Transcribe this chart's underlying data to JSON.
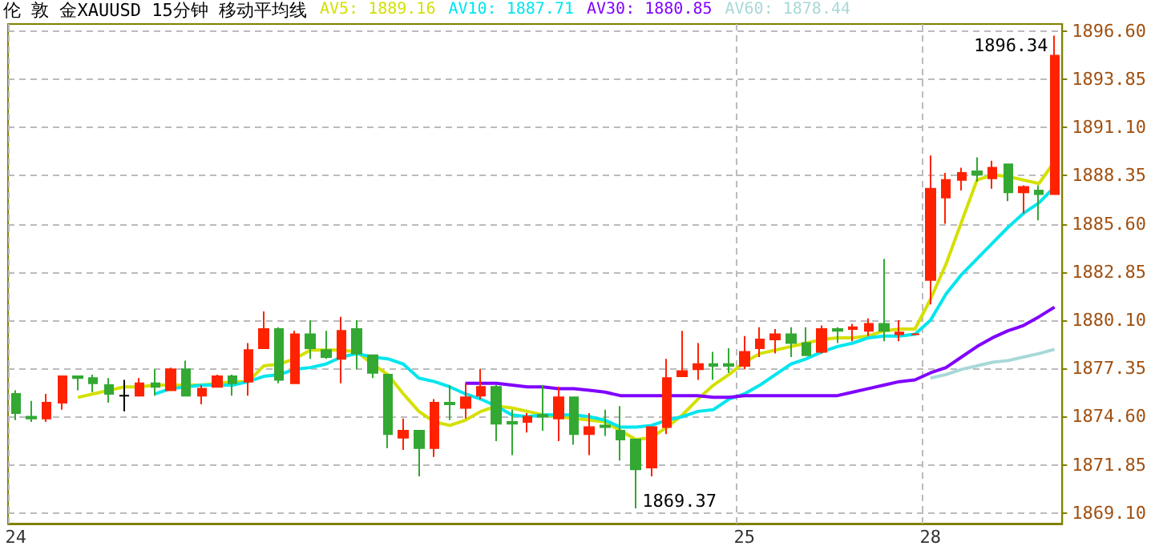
{
  "chart_data": {
    "type": "candlestick",
    "title": "伦 敦 金XAUUSD 15分钟 移动平均线",
    "categories": [
      "24",
      null,
      null,
      null,
      null,
      null,
      null,
      null,
      null,
      null,
      null,
      null,
      null,
      null,
      null,
      null,
      null,
      null,
      null,
      null,
      null,
      null,
      null,
      null,
      null,
      null,
      null,
      null,
      null,
      null,
      null,
      null,
      null,
      null,
      null,
      null,
      null,
      null,
      null,
      null,
      null,
      null,
      null,
      null,
      null,
      null,
      null,
      "25",
      null,
      null,
      null,
      null,
      null,
      null,
      null,
      null,
      null,
      null,
      null,
      "28",
      null,
      null,
      null,
      null,
      null,
      null,
      null,
      null
    ],
    "ohlc": [
      [
        1875.9,
        1876.1,
        1874.4,
        1874.8
      ],
      [
        1874.6,
        1875.5,
        1874.3,
        1874.5
      ],
      [
        1874.5,
        1875.9,
        1874.3,
        1875.4
      ],
      [
        1875.4,
        1876.9,
        1875.0,
        1876.9
      ],
      [
        1876.9,
        1876.9,
        1876.1,
        1876.8
      ],
      [
        1876.8,
        1877.0,
        1876.0,
        1876.5
      ],
      [
        1876.4,
        1876.8,
        1875.4,
        1875.9
      ],
      [
        1875.8,
        1876.7,
        1874.9,
        1875.8
      ],
      [
        1875.8,
        1876.8,
        1875.8,
        1876.5
      ],
      [
        1876.5,
        1877.3,
        1875.8,
        1876.3
      ],
      [
        1876.1,
        1877.4,
        1876.1,
        1877.3
      ],
      [
        1877.3,
        1877.8,
        1875.8,
        1875.8
      ],
      [
        1875.8,
        1876.4,
        1875.3,
        1876.2
      ],
      [
        1876.3,
        1877.0,
        1876.3,
        1876.9
      ],
      [
        1876.9,
        1877.0,
        1875.8,
        1876.5
      ],
      [
        1876.6,
        1878.8,
        1875.8,
        1878.4
      ],
      [
        1878.5,
        1880.6,
        1878.5,
        1879.6
      ],
      [
        1879.6,
        1879.7,
        1876.5,
        1876.7
      ],
      [
        1876.5,
        1879.5,
        1876.5,
        1879.3
      ],
      [
        1879.3,
        1880.1,
        1877.9,
        1878.5
      ],
      [
        1878.4,
        1879.5,
        1877.9,
        1878.0
      ],
      [
        1877.9,
        1880.3,
        1876.5,
        1879.5
      ],
      [
        1879.6,
        1880.1,
        1877.3,
        1878.2
      ],
      [
        1878.1,
        1878.1,
        1876.8,
        1877.1
      ],
      [
        1877.0,
        1877.0,
        1872.8,
        1873.6
      ],
      [
        1873.4,
        1874.5,
        1872.7,
        1873.8
      ],
      [
        1873.8,
        1873.8,
        1871.2,
        1872.8
      ],
      [
        1872.8,
        1875.6,
        1872.3,
        1875.4
      ],
      [
        1875.4,
        1876.4,
        1874.4,
        1875.3
      ],
      [
        1875.1,
        1876.5,
        1874.5,
        1875.7
      ],
      [
        1875.8,
        1877.3,
        1875.6,
        1876.3
      ],
      [
        1876.3,
        1876.4,
        1873.2,
        1874.2
      ],
      [
        1874.3,
        1875.0,
        1872.4,
        1874.2
      ],
      [
        1874.3,
        1874.8,
        1873.7,
        1874.6
      ],
      [
        1874.7,
        1876.4,
        1873.8,
        1874.6
      ],
      [
        1874.5,
        1876.3,
        1873.2,
        1875.7
      ],
      [
        1875.7,
        1875.7,
        1873.0,
        1873.6
      ],
      [
        1873.6,
        1874.8,
        1872.4,
        1874.0
      ],
      [
        1874.1,
        1875.0,
        1873.5,
        1874.0
      ],
      [
        1873.8,
        1875.2,
        1872.1,
        1873.3
      ],
      [
        1873.3,
        1873.3,
        1869.37,
        1871.6
      ],
      [
        1871.7,
        1874.0,
        1871.2,
        1874.0
      ],
      [
        1874.0,
        1877.9,
        1873.6,
        1876.8
      ],
      [
        1876.9,
        1879.5,
        1876.9,
        1877.2
      ],
      [
        1877.3,
        1878.8,
        1876.7,
        1877.6
      ],
      [
        1877.6,
        1878.3,
        1876.7,
        1877.5
      ],
      [
        1877.6,
        1878.5,
        1877.1,
        1877.5
      ],
      [
        1877.5,
        1879.2,
        1877.3,
        1878.3
      ],
      [
        1878.5,
        1879.7,
        1878.0,
        1879.0
      ],
      [
        1879.0,
        1879.6,
        1878.2,
        1879.3
      ],
      [
        1879.3,
        1879.7,
        1878.0,
        1878.8
      ],
      [
        1878.8,
        1879.7,
        1878.1,
        1878.1
      ],
      [
        1878.3,
        1879.8,
        1878.2,
        1879.6
      ],
      [
        1879.6,
        1879.7,
        1878.8,
        1879.5
      ],
      [
        1879.6,
        1879.9,
        1878.9,
        1879.7
      ],
      [
        1879.5,
        1880.2,
        1879.2,
        1879.9
      ],
      [
        1879.9,
        1883.6,
        1878.9,
        1879.5
      ],
      [
        1879.3,
        1880.1,
        1878.9,
        1879.4
      ],
      [
        1879.3,
        1879.3,
        1879.3,
        1879.3
      ],
      [
        1882.4,
        1889.5,
        1881.0,
        1887.6
      ],
      [
        1887.1,
        1888.5,
        1885.6,
        1888.1
      ],
      [
        1888.1,
        1888.8,
        1887.5,
        1888.5
      ],
      [
        1888.6,
        1889.4,
        1888.0,
        1888.4
      ],
      [
        1888.2,
        1889.2,
        1887.6,
        1888.8
      ],
      [
        1889.0,
        1889.0,
        1886.9,
        1887.4
      ],
      [
        1887.4,
        1887.8,
        1886.2,
        1887.7
      ],
      [
        1887.5,
        1887.8,
        1885.8,
        1887.3
      ],
      [
        1887.3,
        1896.34,
        1887.3,
        1895.2
      ]
    ],
    "colors": [
      "#33a833",
      "#33a833",
      "#ff2200",
      "#ff2200",
      "#33a833",
      "#33a833",
      "#33a833",
      "#000000",
      "#ff2200",
      "#33a833",
      "#ff2200",
      "#33a833",
      "#ff2200",
      "#ff2200",
      "#33a833",
      "#ff2200",
      "#ff2200",
      "#33a833",
      "#ff2200",
      "#33a833",
      "#33a833",
      "#ff2200",
      "#33a833",
      "#33a833",
      "#33a833",
      "#ff2200",
      "#33a833",
      "#ff2200",
      "#33a833",
      "#ff2200",
      "#ff2200",
      "#33a833",
      "#33a833",
      "#ff2200",
      "#33a833",
      "#ff2200",
      "#33a833",
      "#ff2200",
      "#33a833",
      "#33a833",
      "#33a833",
      "#ff2200",
      "#ff2200",
      "#ff2200",
      "#ff2200",
      "#33a833",
      "#33a833",
      "#ff2200",
      "#ff2200",
      "#ff2200",
      "#33a833",
      "#33a833",
      "#ff2200",
      "#33a833",
      "#ff2200",
      "#ff2200",
      "#33a833",
      "#ff2200",
      "#ff2200",
      "#ff2200",
      "#ff2200",
      "#ff2200",
      "#33a833",
      "#ff2200",
      "#33a833",
      "#ff2200",
      "#33a833",
      "#ff2200"
    ],
    "series": [
      {
        "type": "line",
        "name": "AV5: 1889.16",
        "color": "#d4e000",
        "values": [
          null,
          null,
          null,
          null,
          1875.7,
          1875.9,
          1876.1,
          1876.3,
          1876.3,
          1876.4,
          1876.4,
          1876.4,
          1876.4,
          1876.5,
          1876.6,
          1876.6,
          1877.5,
          1877.6,
          1877.9,
          1878.4,
          1878.4,
          1878.4,
          1878.3,
          1877.6,
          1877.0,
          1875.9,
          1874.9,
          1874.3,
          1874.1,
          1874.4,
          1874.9,
          1875.2,
          1875.1,
          1874.9,
          1874.7,
          1874.6,
          1874.5,
          1874.4,
          1874.3,
          1873.8,
          1873.3,
          1873.4,
          1874.0,
          1874.7,
          1875.6,
          1876.4,
          1877.0,
          1877.7,
          1878.2,
          1878.4,
          1878.6,
          1878.8,
          1879.0,
          1879.1,
          1879.1,
          1879.2,
          1879.5,
          1879.6,
          1879.6,
          1881.3,
          1883.3,
          1885.7,
          1888.1,
          1888.4,
          1888.3,
          1888.1,
          1887.9,
          1889.16
        ]
      },
      {
        "type": "line",
        "name": "AV10: 1887.71",
        "color": "#00e5ee",
        "values": [
          null,
          null,
          null,
          null,
          null,
          null,
          null,
          null,
          null,
          1875.9,
          1876.2,
          1876.3,
          1876.4,
          1876.4,
          1876.4,
          1876.6,
          1876.9,
          1877.0,
          1877.3,
          1877.4,
          1877.6,
          1878.0,
          1878.2,
          1878.0,
          1877.9,
          1877.6,
          1876.8,
          1876.6,
          1876.3,
          1875.9,
          1875.6,
          1875.2,
          1874.7,
          1874.6,
          1874.7,
          1874.7,
          1874.7,
          1874.6,
          1874.4,
          1874.0,
          1874.0,
          1874.1,
          1874.4,
          1874.6,
          1874.9,
          1875.0,
          1875.6,
          1875.9,
          1876.4,
          1877.0,
          1877.6,
          1877.9,
          1878.3,
          1878.6,
          1878.8,
          1879.1,
          1879.2,
          1879.2,
          1879.3,
          1880.1,
          1881.6,
          1882.7,
          1883.6,
          1884.5,
          1885.4,
          1886.2,
          1886.8,
          1887.71
        ]
      },
      {
        "type": "line",
        "name": "AV30: 1880.85",
        "color": "#8000ff",
        "values": [
          null,
          null,
          null,
          null,
          null,
          null,
          null,
          null,
          null,
          null,
          null,
          null,
          null,
          null,
          null,
          null,
          null,
          null,
          null,
          null,
          null,
          null,
          null,
          null,
          null,
          null,
          null,
          null,
          null,
          1876.5,
          1876.5,
          1876.5,
          1876.4,
          1876.3,
          1876.3,
          1876.2,
          1876.2,
          1876.1,
          1876.0,
          1875.8,
          1875.8,
          1875.8,
          1875.8,
          1875.8,
          1875.8,
          1875.7,
          1875.7,
          1875.8,
          1875.8,
          1875.8,
          1875.8,
          1875.8,
          1875.8,
          1875.8,
          1876.0,
          1876.2,
          1876.4,
          1876.6,
          1876.7,
          1877.1,
          1877.4,
          1878.0,
          1878.6,
          1879.1,
          1879.5,
          1879.8,
          1880.3,
          1880.85
        ]
      },
      {
        "type": "line",
        "name": "AV60: 1878.44",
        "color": "#a8d8d8",
        "values": [
          null,
          null,
          null,
          null,
          null,
          null,
          null,
          null,
          null,
          null,
          null,
          null,
          null,
          null,
          null,
          null,
          null,
          null,
          null,
          null,
          null,
          null,
          null,
          null,
          null,
          null,
          null,
          null,
          null,
          null,
          null,
          null,
          null,
          null,
          null,
          null,
          null,
          null,
          null,
          null,
          null,
          null,
          null,
          null,
          null,
          null,
          null,
          null,
          null,
          null,
          null,
          null,
          null,
          null,
          null,
          null,
          null,
          null,
          null,
          1876.8,
          1877.0,
          1877.3,
          1877.5,
          1877.7,
          1877.8,
          1878.0,
          1878.2,
          1878.44
        ]
      }
    ],
    "ylim": [
      1868.5,
      1897.0
    ],
    "yticks": [
      {
        "value": 1869.1,
        "label": "1869.10"
      },
      {
        "value": 1871.85,
        "label": "1871.85"
      },
      {
        "value": 1874.6,
        "label": "1874.60"
      },
      {
        "value": 1877.35,
        "label": "1877.35"
      },
      {
        "value": 1880.1,
        "label": "1880.10"
      },
      {
        "value": 1882.85,
        "label": "1882.85"
      },
      {
        "value": 1885.6,
        "label": "1885.60"
      },
      {
        "value": 1888.35,
        "label": "1888.35"
      },
      {
        "value": 1891.1,
        "label": "1891.10"
      },
      {
        "value": 1893.85,
        "label": "1893.85"
      },
      {
        "value": 1896.6,
        "label": "1896.60"
      }
    ],
    "annotations": [
      "1896.34",
      "1869.37"
    ],
    "grid": true,
    "marker": "none"
  }
}
